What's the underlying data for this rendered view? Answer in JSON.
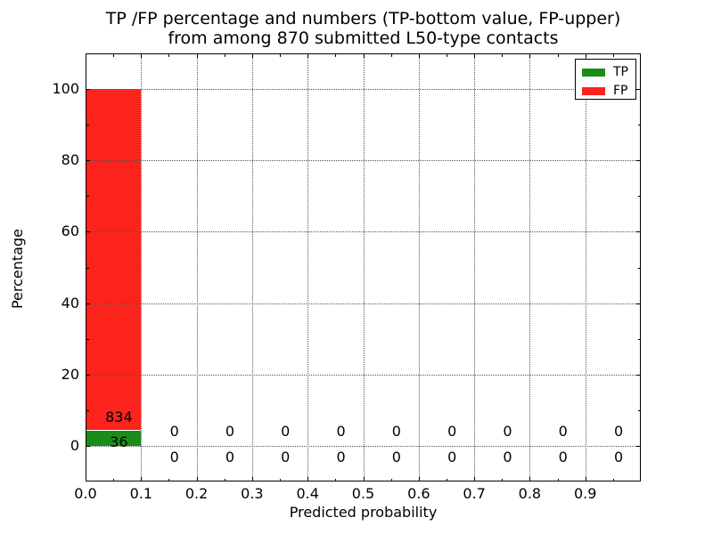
{
  "chart_data": {
    "type": "bar",
    "stacked": true,
    "title_lines": [
      "TP /FP percentage and numbers (TP-bottom value, FP-upper)",
      "from among 870 submitted L50-type contacts"
    ],
    "xlabel": "Predicted probability",
    "ylabel": "Percentage",
    "total_contacts": 870,
    "bin_width": 0.1,
    "bin_starts": [
      0.0,
      0.1,
      0.2,
      0.3,
      0.4,
      0.5,
      0.6,
      0.7,
      0.8,
      0.9
    ],
    "series": [
      {
        "name": "TP",
        "color": "#1a8c1a",
        "counts": [
          36,
          0,
          0,
          0,
          0,
          0,
          0,
          0,
          0,
          0
        ]
      },
      {
        "name": "FP",
        "color": "#fb231b",
        "counts": [
          834,
          0,
          0,
          0,
          0,
          0,
          0,
          0,
          0,
          0
        ]
      }
    ],
    "x_tick_values": [
      0.0,
      0.1,
      0.2,
      0.3,
      0.4,
      0.5,
      0.6,
      0.7,
      0.8,
      0.9
    ],
    "x_tick_labels": [
      "0.0",
      "0.1",
      "0.2",
      "0.3",
      "0.4",
      "0.5",
      "0.6",
      "0.7",
      "0.8",
      "0.9"
    ],
    "y_tick_values": [
      0,
      20,
      40,
      60,
      80,
      100
    ],
    "y_tick_labels": [
      "0",
      "20",
      "40",
      "60",
      "80",
      "100"
    ],
    "xlim": [
      0.0,
      1.0
    ],
    "ylim": [
      -10,
      110
    ],
    "grid": {
      "style": "dotted",
      "color": "#555555"
    },
    "legend": {
      "position": "upper right",
      "entries": [
        "TP",
        "FP"
      ]
    }
  }
}
